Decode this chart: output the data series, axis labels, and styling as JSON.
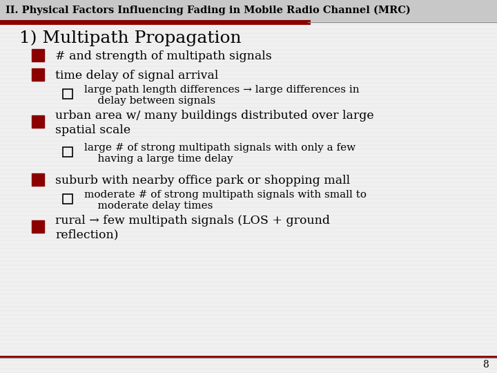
{
  "bg_color": "#f0f0f0",
  "title_bg_color": "#d8d8d8",
  "title_bar_color": "#8B0000",
  "title_bar_line_color": "#888888",
  "title_text": "II. Physical Factors Influencing Fading in Mobile Radio Channel (MRC)",
  "title_fontsize": 10.5,
  "title_color": "#000000",
  "heading": "1) Multipath Propagation",
  "heading_fontsize": 18,
  "bullet_color": "#8B0000",
  "sub_bullet_color": "#000000",
  "text_color": "#000000",
  "font_family": "serif",
  "items": [
    {
      "level": 1,
      "text": "# and strength of multipath signals",
      "lines": 1
    },
    {
      "level": 1,
      "text": "time delay of signal arrival",
      "lines": 1
    },
    {
      "level": 2,
      "text": "large path length differences → large differences in\n    delay between signals",
      "lines": 2
    },
    {
      "level": 1,
      "text": "urban area w/ many buildings distributed over large\nspatial scale",
      "lines": 2
    },
    {
      "level": 2,
      "text": "large # of strong multipath signals with only a few\n    having a large time delay",
      "lines": 2
    },
    {
      "level": 1,
      "text": "suburb with nearby office park or shopping mall",
      "lines": 1
    },
    {
      "level": 2,
      "text": "moderate # of strong multipath signals with small to\n    moderate delay times",
      "lines": 2
    },
    {
      "level": 1,
      "text": "rural → few multipath signals (LOS + ground\nreflection)",
      "lines": 2
    }
  ],
  "page_number": "8",
  "footer_line_color": "#8B0000",
  "footer_line2_color": "#888888"
}
